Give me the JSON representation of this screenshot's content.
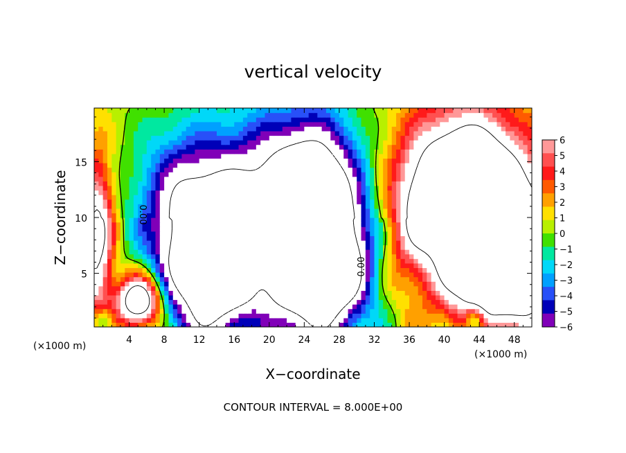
{
  "chart_data": {
    "type": "heatmap",
    "title": "vertical velocity",
    "xlabel": "X−coordinate",
    "ylabel": "Z−coordinate",
    "x_unit_left": "(×1000 m)",
    "x_unit_right": "(×1000 m)",
    "footer": "CONTOUR INTERVAL = 8.000E+00",
    "xlim": [
      0,
      50
    ],
    "ylim": [
      0.2,
      19.8
    ],
    "x_ticks": [
      4,
      8,
      12,
      16,
      20,
      24,
      28,
      32,
      36,
      40,
      44,
      48
    ],
    "x_tick_labels": [
      "4",
      "8",
      "12",
      "16",
      "20",
      "24",
      "28",
      "32",
      "36",
      "40",
      "44",
      "48"
    ],
    "y_ticks": [
      5,
      10,
      15
    ],
    "y_tick_labels": [
      "5",
      "10",
      "15"
    ],
    "colorbar": {
      "ticks": [
        6,
        5,
        4,
        3,
        2,
        1,
        0,
        -1,
        -2,
        -3,
        -4,
        -5,
        -6
      ],
      "labels": [
        "6",
        "5",
        "4",
        "3",
        "2",
        "1",
        "0",
        "−1",
        "−2",
        "−3",
        "−4",
        "−5",
        "−6"
      ],
      "colors": [
        "#ff9898",
        "#ff5050",
        "#ff1a1a",
        "#ff5a00",
        "#ffa000",
        "#ffe000",
        "#b8f000",
        "#40e000",
        "#00e8a0",
        "#00d8f8",
        "#00a0ff",
        "#2850f8",
        "#0000b8",
        "#8000b8"
      ]
    },
    "contour_labels": [
      "0.00",
      "0.00"
    ],
    "features": [
      {
        "sign": "neg",
        "x": 13.5,
        "z": 6.0,
        "amp": 14,
        "sx": 4.0,
        "sz": 5.0
      },
      {
        "sign": "neg",
        "x": 19,
        "z": 13,
        "amp": 5,
        "sx": 7.0,
        "sz": 5.0
      },
      {
        "sign": "neg",
        "x": 25,
        "z": 8.0,
        "amp": 17,
        "sx": 3.8,
        "sz": 6.0
      },
      {
        "sign": "neg",
        "x": 9,
        "z": 12,
        "amp": 3,
        "sx": 3.0,
        "sz": 4.0
      },
      {
        "sign": "neg",
        "x": 29,
        "z": 5,
        "amp": 3,
        "sx": 2.5,
        "sz": 3.0
      },
      {
        "sign": "neg",
        "x": 1.0,
        "z": 0.8,
        "amp": 4,
        "sx": 0.8,
        "sz": 0.8
      },
      {
        "sign": "neg",
        "x": 43.5,
        "z": 0.8,
        "amp": 6,
        "sx": 0.8,
        "sz": 0.8
      },
      {
        "sign": "pos",
        "x": 42.5,
        "z": 12,
        "amp": 16,
        "sx": 5.0,
        "sz": 5.0
      },
      {
        "sign": "pos",
        "x": 49,
        "z": 6,
        "amp": 12,
        "sx": 3.0,
        "sz": 4.0
      },
      {
        "sign": "pos",
        "x": 44,
        "z": 4,
        "amp": 6,
        "sx": 3.0,
        "sz": 3.0
      },
      {
        "sign": "pos",
        "x": 5.2,
        "z": 2.5,
        "amp": 12,
        "sx": 1.8,
        "sz": 1.6
      },
      {
        "sign": "pos",
        "x": 0.3,
        "z": 8,
        "amp": 9,
        "sx": 1.3,
        "sz": 5.0
      },
      {
        "sign": "pos",
        "x": 36,
        "z": 9,
        "amp": 2,
        "sx": 2.0,
        "sz": 4.0
      },
      {
        "sign": "pos",
        "x": 18,
        "z": 1,
        "amp": 1.5,
        "sx": 1.5,
        "sz": 0.8
      }
    ]
  }
}
